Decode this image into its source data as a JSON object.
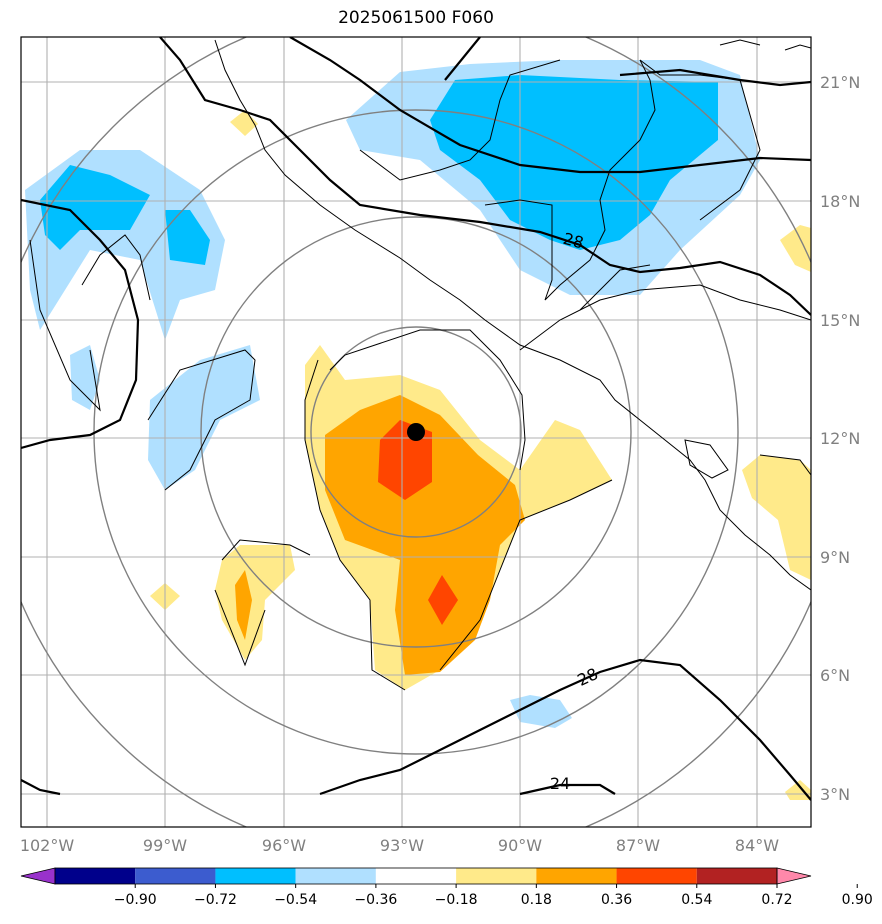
{
  "title": "2025061500 F060",
  "lon_labels": [
    "102°W",
    "99°W",
    "96°W",
    "93°W",
    "90°W",
    "87°W",
    "84°W"
  ],
  "lat_labels": [
    "21°N",
    "18°N",
    "15°N",
    "12°N",
    "9°N",
    "6°N",
    "3°N"
  ],
  "contour_labels": [
    "28",
    "28",
    "24"
  ],
  "colorbar": {
    "tick_labels": [
      "−0.90",
      "−0.72",
      "−0.54",
      "−0.36",
      "−0.18",
      "0.18",
      "0.36",
      "0.54",
      "0.72",
      "0.90"
    ],
    "colors": [
      "#9932cc",
      "#00008b",
      "#3c5ccf",
      "#00bfff",
      "#b0e0ff",
      "#ffffff",
      "#ffea8a",
      "#ffa500",
      "#ff4500",
      "#b22222",
      "#ff88aa"
    ]
  },
  "storm_center": {
    "lon": "92.6°W",
    "lat": "12.2°N"
  }
}
